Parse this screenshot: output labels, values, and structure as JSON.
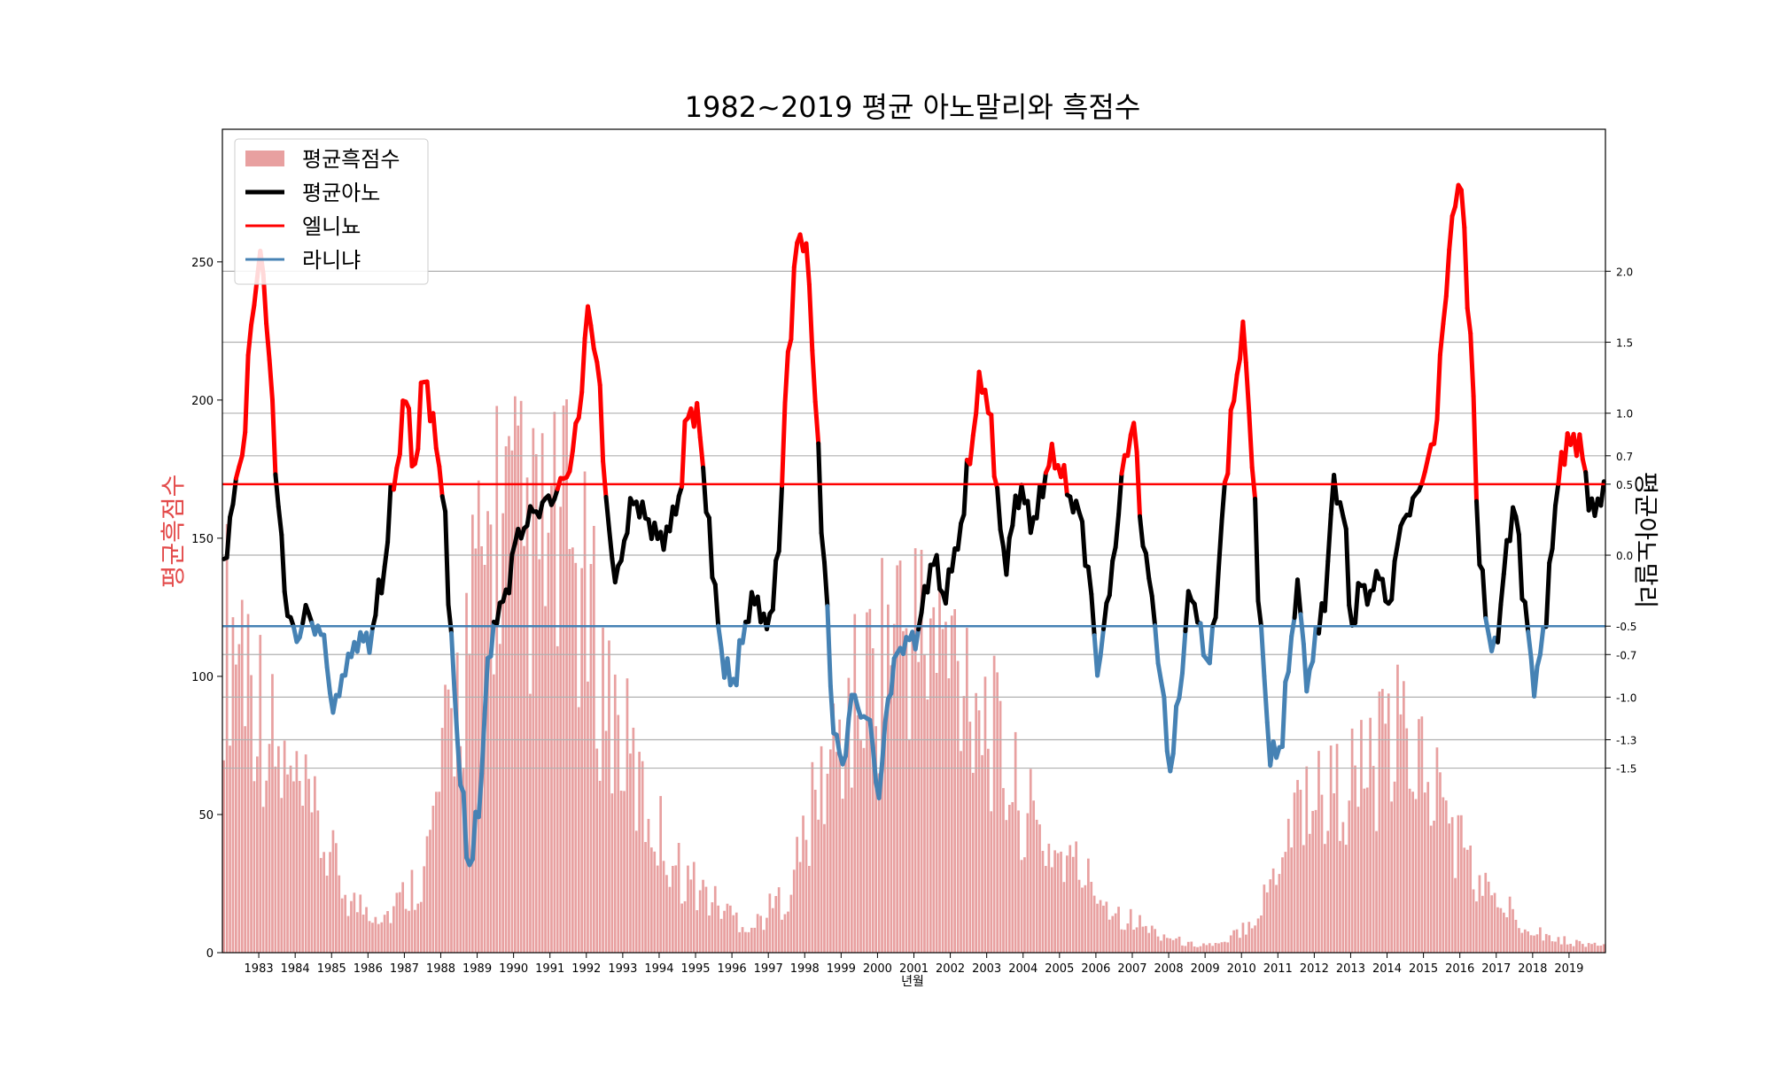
{
  "chart_data": {
    "type": "bar+line",
    "title": "1982~2019 평균 아노말리와 흑점수",
    "xlabel": "년월",
    "ylabel_left": "평균흑점수",
    "ylabel_right": "평균아노말리",
    "ylim_left": [
      0,
      298
    ],
    "ylim_right": [
      -2.8,
      3.0
    ],
    "x_range": [
      "1982-01",
      "2019-12"
    ],
    "x_ticks": [
      "1983",
      "1984",
      "1985",
      "1986",
      "1987",
      "1988",
      "1989",
      "1990",
      "1991",
      "1992",
      "1993",
      "1994",
      "1995",
      "1996",
      "1997",
      "1998",
      "1999",
      "2000",
      "2001",
      "2002",
      "2003",
      "2004",
      "2005",
      "2006",
      "2007",
      "2008",
      "2009",
      "2010",
      "2011",
      "2012",
      "2013",
      "2014",
      "2015",
      "2016",
      "2017",
      "2018",
      "2019"
    ],
    "y_ticks_left": [
      "0",
      "50",
      "100",
      "150",
      "200",
      "250"
    ],
    "y_ticks_right": [
      "2.0",
      "1.5",
      "1.0",
      "0.7",
      "0.5",
      "0.0",
      "-0.5",
      "-0.7",
      "-1.0",
      "-1.3",
      "-1.5"
    ],
    "grid": "horizontal at right-axis ticks",
    "legend": {
      "position": "top-left",
      "entries": [
        {
          "label": "평균흑점수",
          "color": "#e8a0a0",
          "kind": "bar"
        },
        {
          "label": "평균아노",
          "color": "#000000",
          "kind": "line"
        },
        {
          "label": "엘니뇨",
          "color": "#ff0000",
          "kind": "hline"
        },
        {
          "label": "라니냐",
          "color": "#4682b4",
          "kind": "hline"
        }
      ]
    },
    "thresholds": {
      "el_nino": 0.5,
      "la_nina": -0.5
    },
    "colors": {
      "bar": "#e8a0a0",
      "neutral": "#000000",
      "el_nino": "#ff0000",
      "la_nina": "#4682b4"
    },
    "sunspot_annual": [
      {
        "year": 1982,
        "value": 116
      },
      {
        "year": 1983,
        "value": 67
      },
      {
        "year": 1984,
        "value": 46
      },
      {
        "year": 1985,
        "value": 18
      },
      {
        "year": 1986,
        "value": 14
      },
      {
        "year": 1987,
        "value": 29
      },
      {
        "year": 1988,
        "value": 100
      },
      {
        "year": 1989,
        "value": 158
      },
      {
        "year": 1990,
        "value": 142
      },
      {
        "year": 1991,
        "value": 146
      },
      {
        "year": 1992,
        "value": 95
      },
      {
        "year": 1993,
        "value": 55
      },
      {
        "year": 1994,
        "value": 30
      },
      {
        "year": 1995,
        "value": 18
      },
      {
        "year": 1996,
        "value": 9
      },
      {
        "year": 1997,
        "value": 22
      },
      {
        "year": 1998,
        "value": 64
      },
      {
        "year": 1999,
        "value": 94
      },
      {
        "year": 2000,
        "value": 120
      },
      {
        "year": 2001,
        "value": 111
      },
      {
        "year": 2002,
        "value": 104
      },
      {
        "year": 2003,
        "value": 64
      },
      {
        "year": 2004,
        "value": 40
      },
      {
        "year": 2005,
        "value": 30
      },
      {
        "year": 2006,
        "value": 15
      },
      {
        "year": 2007,
        "value": 8
      },
      {
        "year": 2008,
        "value": 3
      },
      {
        "year": 2009,
        "value": 3
      },
      {
        "year": 2010,
        "value": 16
      },
      {
        "year": 2011,
        "value": 56
      },
      {
        "year": 2012,
        "value": 58
      },
      {
        "year": 2013,
        "value": 65
      },
      {
        "year": 2014,
        "value": 79
      },
      {
        "year": 2015,
        "value": 53
      },
      {
        "year": 2016,
        "value": 24
      },
      {
        "year": 2017,
        "value": 13
      },
      {
        "year": 2018,
        "value": 5
      },
      {
        "year": 2019,
        "value": 3
      }
    ],
    "anomaly_keypoints": [
      {
        "t": "1982-01",
        "v": -0.1
      },
      {
        "t": "1982-04",
        "v": 0.4
      },
      {
        "t": "1982-07",
        "v": 0.7
      },
      {
        "t": "1982-10",
        "v": 1.6
      },
      {
        "t": "1983-01",
        "v": 2.15
      },
      {
        "t": "1983-04",
        "v": 1.4
      },
      {
        "t": "1983-07",
        "v": 0.3
      },
      {
        "t": "1983-10",
        "v": -0.4
      },
      {
        "t": "1984-01",
        "v": -0.6
      },
      {
        "t": "1984-04",
        "v": -0.4
      },
      {
        "t": "1984-07",
        "v": -0.5
      },
      {
        "t": "1984-10",
        "v": -0.6
      },
      {
        "t": "1985-01",
        "v": -1.1
      },
      {
        "t": "1985-05",
        "v": -0.8
      },
      {
        "t": "1985-09",
        "v": -0.6
      },
      {
        "t": "1986-01",
        "v": -0.6
      },
      {
        "t": "1986-05",
        "v": -0.2
      },
      {
        "t": "1986-09",
        "v": 0.5
      },
      {
        "t": "1987-01",
        "v": 1.1
      },
      {
        "t": "1987-04",
        "v": 0.6
      },
      {
        "t": "1987-07",
        "v": 1.3
      },
      {
        "t": "1987-10",
        "v": 0.9
      },
      {
        "t": "1988-01",
        "v": 0.5
      },
      {
        "t": "1988-04",
        "v": -0.6
      },
      {
        "t": "1988-07",
        "v": -1.6
      },
      {
        "t": "1988-10",
        "v": -2.2
      },
      {
        "t": "1989-01",
        "v": -1.8
      },
      {
        "t": "1989-04",
        "v": -0.8
      },
      {
        "t": "1989-07",
        "v": -0.4
      },
      {
        "t": "1989-10",
        "v": -0.3
      },
      {
        "t": "1990-01",
        "v": 0.1
      },
      {
        "t": "1990-07",
        "v": 0.3
      },
      {
        "t": "1991-01",
        "v": 0.4
      },
      {
        "t": "1991-07",
        "v": 0.6
      },
      {
        "t": "1991-10",
        "v": 1.0
      },
      {
        "t": "1992-01",
        "v": 1.7
      },
      {
        "t": "1992-04",
        "v": 1.4
      },
      {
        "t": "1992-07",
        "v": 0.4
      },
      {
        "t": "1992-10",
        "v": -0.2
      },
      {
        "t": "1993-01",
        "v": 0.1
      },
      {
        "t": "1993-04",
        "v": 0.4
      },
      {
        "t": "1993-07",
        "v": 0.3
      },
      {
        "t": "1993-10",
        "v": 0.2
      },
      {
        "t": "1994-01",
        "v": 0.1
      },
      {
        "t": "1994-04",
        "v": 0.2
      },
      {
        "t": "1994-07",
        "v": 0.4
      },
      {
        "t": "1994-10",
        "v": 1.0
      },
      {
        "t": "1995-01",
        "v": 1.0
      },
      {
        "t": "1995-04",
        "v": 0.4
      },
      {
        "t": "1995-07",
        "v": -0.3
      },
      {
        "t": "1995-10",
        "v": -0.8
      },
      {
        "t": "1996-01",
        "v": -0.9
      },
      {
        "t": "1996-04",
        "v": -0.6
      },
      {
        "t": "1996-07",
        "v": -0.3
      },
      {
        "t": "1996-10",
        "v": -0.4
      },
      {
        "t": "1997-01",
        "v": -0.5
      },
      {
        "t": "1997-04",
        "v": 0.1
      },
      {
        "t": "1997-07",
        "v": 1.4
      },
      {
        "t": "1997-10",
        "v": 2.2
      },
      {
        "t": "1998-01",
        "v": 2.2
      },
      {
        "t": "1998-04",
        "v": 1.1
      },
      {
        "t": "1998-07",
        "v": -0.1
      },
      {
        "t": "1998-10",
        "v": -1.2
      },
      {
        "t": "1999-01",
        "v": -1.5
      },
      {
        "t": "1999-04",
        "v": -1.0
      },
      {
        "t": "1999-07",
        "v": -1.1
      },
      {
        "t": "1999-10",
        "v": -1.2
      },
      {
        "t": "2000-01",
        "v": -1.7
      },
      {
        "t": "2000-04",
        "v": -1.0
      },
      {
        "t": "2000-07",
        "v": -0.7
      },
      {
        "t": "2000-10",
        "v": -0.6
      },
      {
        "t": "2001-01",
        "v": -0.6
      },
      {
        "t": "2001-04",
        "v": -0.3
      },
      {
        "t": "2001-07",
        "v": 0.0
      },
      {
        "t": "2001-10",
        "v": -0.3
      },
      {
        "t": "2002-01",
        "v": -0.1
      },
      {
        "t": "2002-04",
        "v": 0.2
      },
      {
        "t": "2002-07",
        "v": 0.7
      },
      {
        "t": "2002-10",
        "v": 1.2
      },
      {
        "t": "2003-01",
        "v": 1.1
      },
      {
        "t": "2003-04",
        "v": 0.4
      },
      {
        "t": "2003-07",
        "v": -0.1
      },
      {
        "t": "2003-10",
        "v": 0.4
      },
      {
        "t": "2004-01",
        "v": 0.4
      },
      {
        "t": "2004-04",
        "v": 0.2
      },
      {
        "t": "2004-07",
        "v": 0.5
      },
      {
        "t": "2004-10",
        "v": 0.7
      },
      {
        "t": "2005-01",
        "v": 0.6
      },
      {
        "t": "2005-04",
        "v": 0.4
      },
      {
        "t": "2005-07",
        "v": 0.3
      },
      {
        "t": "2005-10",
        "v": -0.1
      },
      {
        "t": "2006-01",
        "v": -0.8
      },
      {
        "t": "2006-04",
        "v": -0.4
      },
      {
        "t": "2006-07",
        "v": 0.1
      },
      {
        "t": "2006-10",
        "v": 0.7
      },
      {
        "t": "2007-01",
        "v": 0.9
      },
      {
        "t": "2007-04",
        "v": 0.1
      },
      {
        "t": "2007-07",
        "v": -0.3
      },
      {
        "t": "2007-10",
        "v": -0.9
      },
      {
        "t": "2008-01",
        "v": -1.5
      },
      {
        "t": "2008-04",
        "v": -1.0
      },
      {
        "t": "2008-07",
        "v": -0.3
      },
      {
        "t": "2008-10",
        "v": -0.4
      },
      {
        "t": "2009-01",
        "v": -0.8
      },
      {
        "t": "2009-04",
        "v": -0.4
      },
      {
        "t": "2009-07",
        "v": 0.5
      },
      {
        "t": "2009-10",
        "v": 1.1
      },
      {
        "t": "2010-01",
        "v": 1.6
      },
      {
        "t": "2010-04",
        "v": 0.7
      },
      {
        "t": "2010-07",
        "v": -0.6
      },
      {
        "t": "2010-10",
        "v": -1.4
      },
      {
        "t": "2011-01",
        "v": -1.4
      },
      {
        "t": "2011-04",
        "v": -0.8
      },
      {
        "t": "2011-07",
        "v": -0.2
      },
      {
        "t": "2011-10",
        "v": -0.9
      },
      {
        "t": "2012-01",
        "v": -0.6
      },
      {
        "t": "2012-04",
        "v": -0.3
      },
      {
        "t": "2012-07",
        "v": 0.5
      },
      {
        "t": "2012-10",
        "v": 0.3
      },
      {
        "t": "2013-01",
        "v": -0.5
      },
      {
        "t": "2013-04",
        "v": -0.2
      },
      {
        "t": "2013-07",
        "v": -0.3
      },
      {
        "t": "2013-10",
        "v": -0.1
      },
      {
        "t": "2014-01",
        "v": -0.4
      },
      {
        "t": "2014-04",
        "v": 0.1
      },
      {
        "t": "2014-07",
        "v": 0.3
      },
      {
        "t": "2014-10",
        "v": 0.4
      },
      {
        "t": "2015-01",
        "v": 0.6
      },
      {
        "t": "2015-04",
        "v": 0.8
      },
      {
        "t": "2015-07",
        "v": 1.6
      },
      {
        "t": "2015-10",
        "v": 2.4
      },
      {
        "t": "2016-01",
        "v": 2.6
      },
      {
        "t": "2016-04",
        "v": 1.5
      },
      {
        "t": "2016-07",
        "v": 0.0
      },
      {
        "t": "2016-10",
        "v": -0.6
      },
      {
        "t": "2017-01",
        "v": -0.6
      },
      {
        "t": "2017-04",
        "v": 0.1
      },
      {
        "t": "2017-07",
        "v": 0.3
      },
      {
        "t": "2017-10",
        "v": -0.4
      },
      {
        "t": "2018-01",
        "v": -0.9
      },
      {
        "t": "2018-04",
        "v": -0.6
      },
      {
        "t": "2018-07",
        "v": 0.1
      },
      {
        "t": "2018-10",
        "v": 0.7
      },
      {
        "t": "2019-01",
        "v": 0.8
      },
      {
        "t": "2019-04",
        "v": 0.8
      },
      {
        "t": "2019-07",
        "v": 0.4
      },
      {
        "t": "2019-10",
        "v": 0.3
      },
      {
        "t": "2019-12",
        "v": 0.5
      }
    ]
  }
}
